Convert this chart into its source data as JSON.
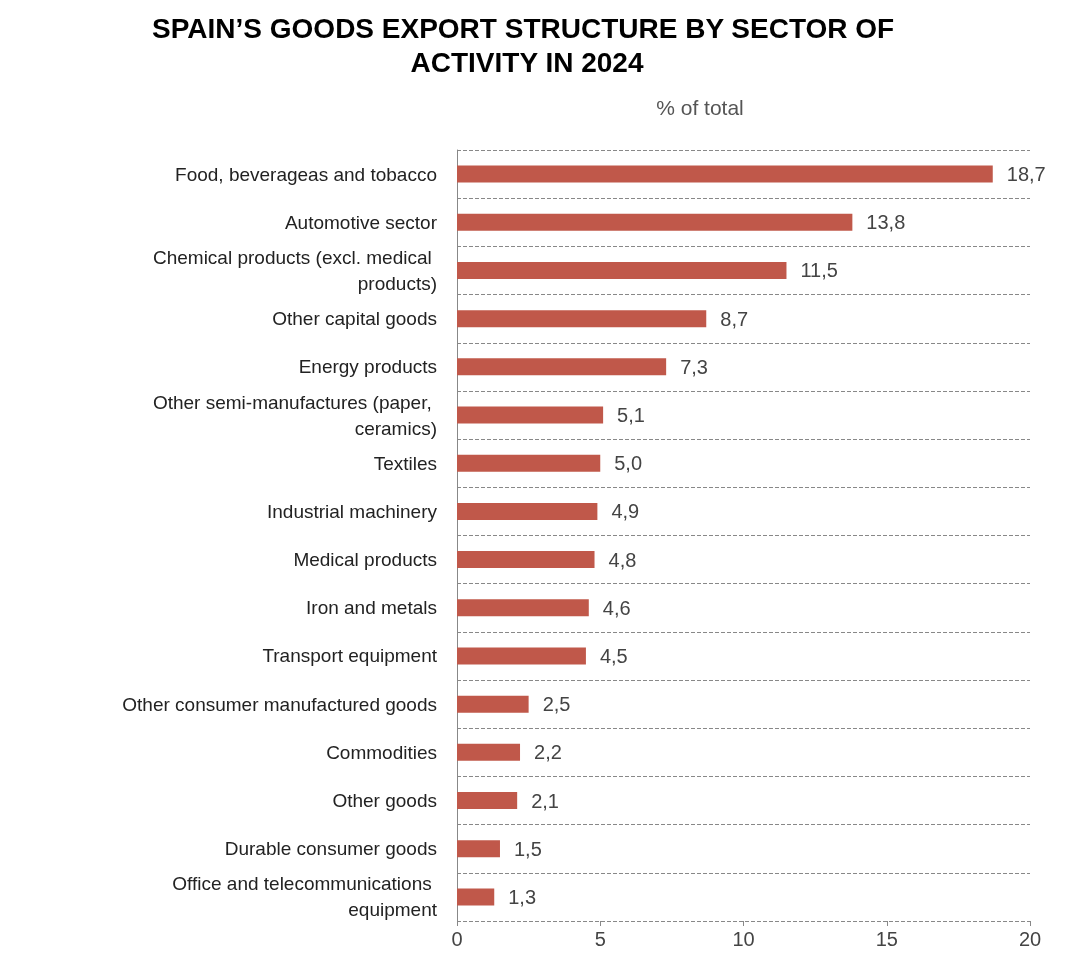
{
  "chart_data": {
    "type": "bar",
    "orientation": "horizontal",
    "title": "SPAIN’S GOODS EXPORT STRUCTURE BY SECTOR OF ACTIVITY IN 2024",
    "xlabel": "% of total",
    "categories": [
      "Food, beverageas and tobacco",
      "Automotive sector",
      "Chemical products (excl. medical products)",
      "Other capital goods",
      "Energy products",
      "Other semi-manufactures (paper, ceramics)",
      "Textiles",
      "Industrial machinery",
      "Medical products",
      "Iron and metals",
      "Transport equipment",
      "Other consumer manufactured goods",
      "Commodities",
      "Other goods",
      "Durable consumer goods",
      "Office and telecommunications equipment"
    ],
    "values": [
      18.7,
      13.8,
      11.5,
      8.7,
      7.3,
      5.1,
      5.0,
      4.9,
      4.8,
      4.6,
      4.5,
      2.5,
      2.2,
      2.1,
      1.5,
      1.3
    ],
    "value_labels": [
      "18,7",
      "13,8",
      "11,5",
      "8,7",
      "7,3",
      "5,1",
      "5,0",
      "4,9",
      "4,8",
      "4,6",
      "4,5",
      "2,5",
      "2,2",
      "2,1",
      "1,5",
      "1,3"
    ],
    "color": "#c0584a",
    "xlim": [
      0,
      20
    ],
    "xticks": [
      0,
      5,
      10,
      15,
      20
    ],
    "grid": "y"
  }
}
